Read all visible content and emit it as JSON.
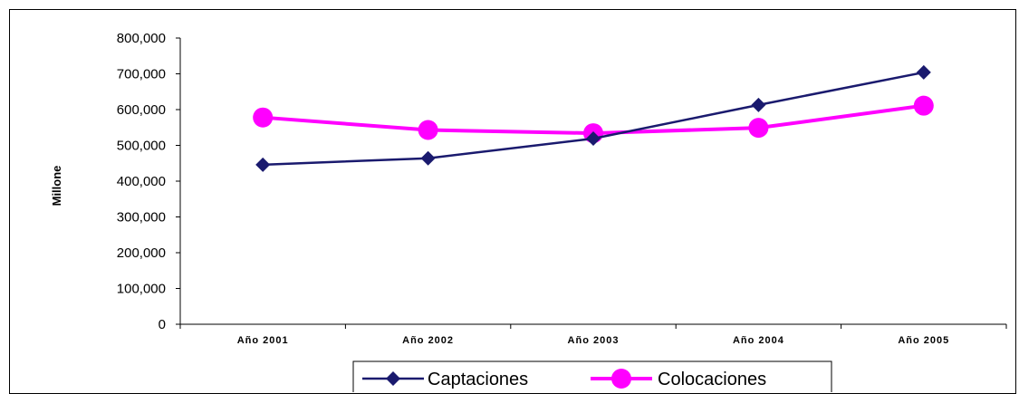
{
  "chart_data": {
    "type": "line",
    "title": "",
    "xlabel": "",
    "ylabel": "Millone",
    "categories": [
      "Año 2001",
      "Año 2002",
      "Año 2003",
      "Año 2004",
      "Año 2005"
    ],
    "ylim": [
      0,
      800000
    ],
    "yticks": [
      "0",
      "100,000",
      "200,000",
      "300,000",
      "400,000",
      "500,000",
      "600,000",
      "700,000",
      "800,000"
    ],
    "grid": false,
    "legend": "bottom",
    "series": [
      {
        "name": "Captaciones",
        "color": "#1a1a6e",
        "marker": "diamond",
        "values": [
          446000,
          464000,
          519000,
          613000,
          704000
        ]
      },
      {
        "name": "Colocaciones",
        "color": "#ff00ff",
        "marker": "circle",
        "values": [
          578000,
          543000,
          534000,
          549000,
          611000
        ]
      }
    ]
  }
}
